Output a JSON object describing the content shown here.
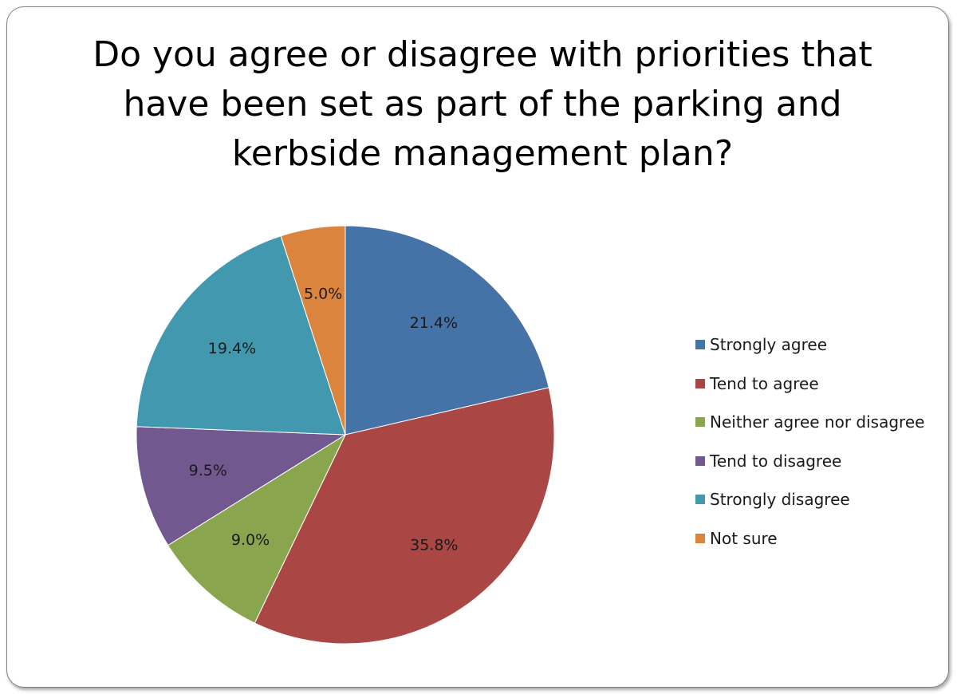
{
  "chart_data": {
    "type": "pie",
    "title_lines": [
      "Do you agree  or disagree with priorities that",
      "have been set as part of the parking and",
      "kerbside management plan?"
    ],
    "start_angle_deg": 0,
    "direction": "clockwise",
    "legend_position": "right",
    "slices": [
      {
        "label": "Strongly agree",
        "value": 21.4,
        "display": "21.4%",
        "color": "#4572A7"
      },
      {
        "label": "Tend to agree",
        "value": 35.8,
        "display": "35.8%",
        "color": "#AA4643"
      },
      {
        "label": "Neither agree nor disagree",
        "value": 9.0,
        "display": "9.0%",
        "color": "#89A54E"
      },
      {
        "label": "Tend to disagree",
        "value": 9.5,
        "display": "9.5%",
        "color": "#71588F"
      },
      {
        "label": "Strongly disagree",
        "value": 19.4,
        "display": "19.4%",
        "color": "#4198AF"
      },
      {
        "label": "Not sure",
        "value": 5.0,
        "display": "5.0%",
        "color": "#DB843D"
      }
    ]
  }
}
